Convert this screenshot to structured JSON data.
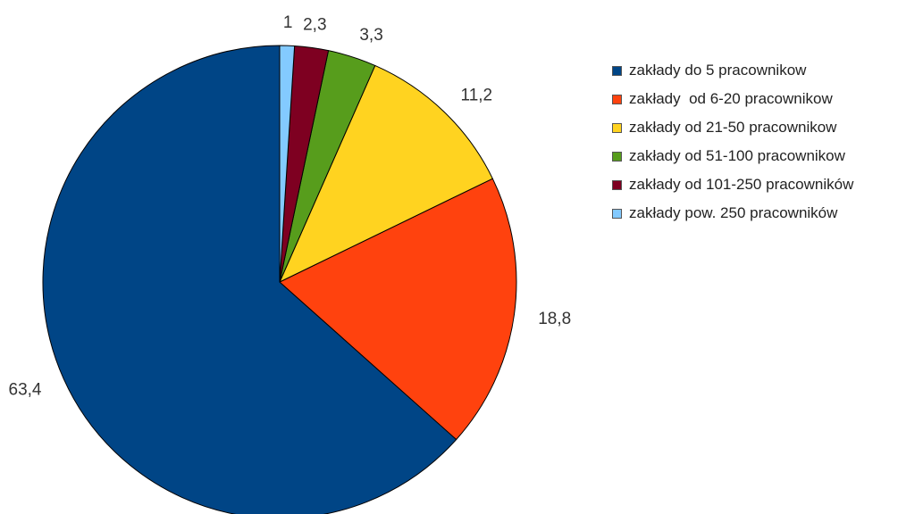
{
  "chart_data": {
    "type": "pie",
    "title": "",
    "categories": [
      "zakłady do 5 pracownikow",
      "zakłady  od 6-20 pracownikow",
      "zakłady od 21-50 pracownikow",
      "zakłady od 51-100 pracownikow",
      "zakłady od 101-250 pracowników",
      "zakłady pow. 250 pracowników"
    ],
    "values": [
      63.4,
      18.8,
      11.2,
      3.3,
      2.3,
      1
    ],
    "value_labels": [
      "63,4",
      "18,8",
      "11,2",
      "3,3",
      "2,3",
      "1"
    ],
    "colors": [
      "#004586",
      "#ff420e",
      "#ffd320",
      "#579d1c",
      "#7e0021",
      "#83caff"
    ],
    "start_angle": "12 o'clock",
    "direction": "clockwise",
    "draw_order": [
      5,
      4,
      3,
      2,
      1,
      0
    ],
    "legend_position": "right"
  }
}
